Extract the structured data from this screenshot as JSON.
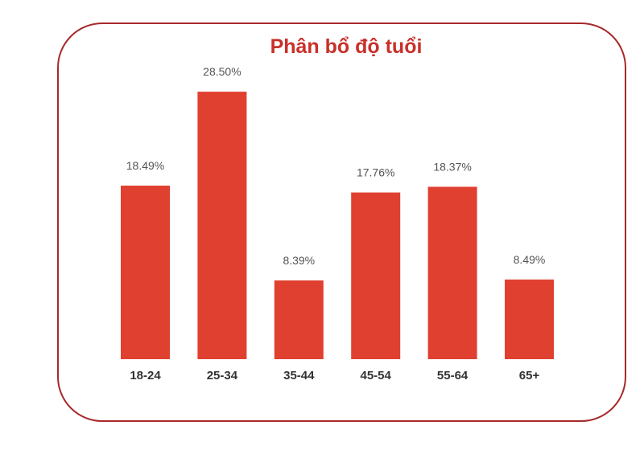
{
  "chart_data": {
    "type": "bar",
    "title": "Phân bổ độ tuổi",
    "categories": [
      "18-24",
      "25-34",
      "35-44",
      "45-54",
      "55-64",
      "65+"
    ],
    "values": [
      18.49,
      28.5,
      8.39,
      17.76,
      18.37,
      8.49
    ],
    "data_labels": [
      "18.49%",
      "28.50%",
      "8.39%",
      "17.76%",
      "18.37%",
      "8.49%"
    ],
    "xlabel": "",
    "ylabel": "",
    "ylim": [
      0,
      30
    ],
    "grid": false,
    "bar_color": "#e04030",
    "title_color": "#c9302a",
    "frame_color": "#a8282a"
  }
}
